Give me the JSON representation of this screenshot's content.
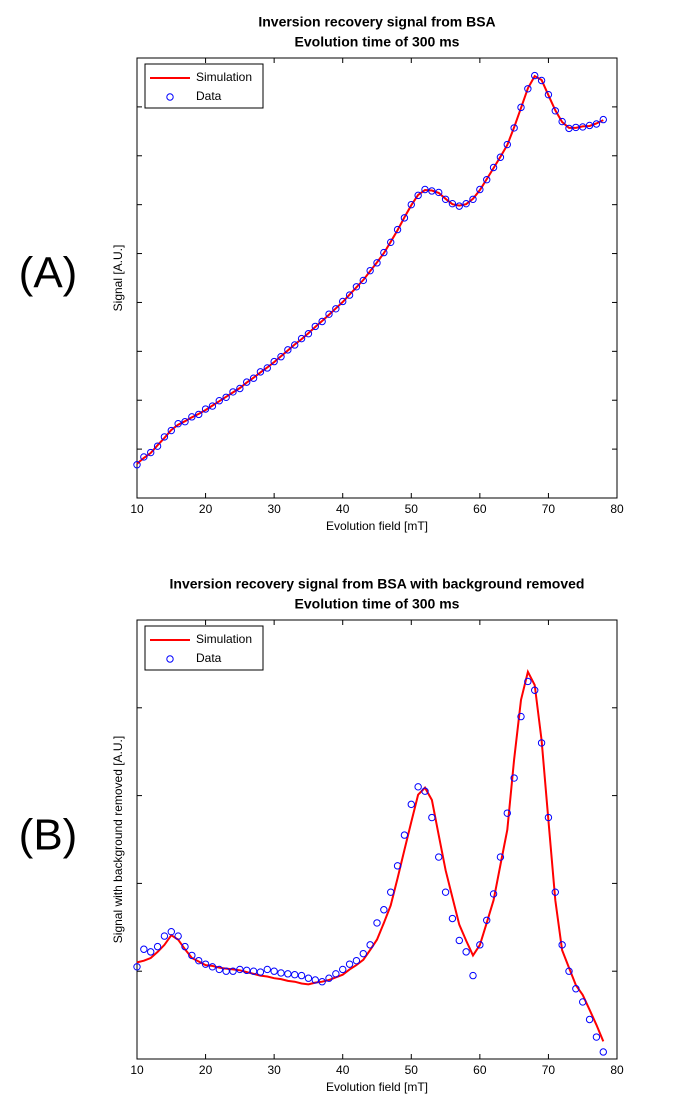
{
  "chart_data": [
    {
      "type": "line",
      "panel_label": "(A)",
      "title": "Inversion recovery signal from BSA",
      "subtitle": "Evolution time of 300 ms",
      "xlabel": "Evolution field [mT]",
      "ylabel": "Signal [A.U.]",
      "xlim": [
        10,
        80
      ],
      "xticks": [
        10,
        20,
        30,
        40,
        50,
        60,
        70,
        80
      ],
      "ylim": [
        0,
        9
      ],
      "yticks": [
        1,
        2,
        3,
        4,
        5,
        6,
        7,
        8
      ],
      "ytick_labels": false,
      "legend": "upper left",
      "x": [
        10,
        11,
        12,
        13,
        14,
        15,
        16,
        17,
        18,
        19,
        20,
        21,
        22,
        23,
        24,
        25,
        26,
        27,
        28,
        29,
        30,
        31,
        32,
        33,
        34,
        35,
        36,
        37,
        38,
        39,
        40,
        41,
        42,
        43,
        44,
        45,
        46,
        47,
        48,
        49,
        50,
        51,
        52,
        53,
        54,
        55,
        56,
        57,
        58,
        59,
        60,
        61,
        62,
        63,
        64,
        65,
        66,
        67,
        68,
        69,
        70,
        71,
        72,
        73,
        74,
        75,
        76,
        77,
        78
      ],
      "series": [
        {
          "name": "Simulation",
          "color": "#ff0000",
          "style": "line",
          "values": [
            0.7,
            0.82,
            0.92,
            1.08,
            1.23,
            1.39,
            1.5,
            1.57,
            1.65,
            1.72,
            1.8,
            1.89,
            1.98,
            2.07,
            2.16,
            2.25,
            2.36,
            2.46,
            2.57,
            2.67,
            2.78,
            2.9,
            3.02,
            3.14,
            3.25,
            3.37,
            3.5,
            3.62,
            3.75,
            3.88,
            4.01,
            4.16,
            4.31,
            4.46,
            4.64,
            4.82,
            5.01,
            5.24,
            5.48,
            5.74,
            5.99,
            6.2,
            6.3,
            6.29,
            6.24,
            6.12,
            6.01,
            5.98,
            6.01,
            6.12,
            6.3,
            6.52,
            6.75,
            6.98,
            7.22,
            7.58,
            7.98,
            8.38,
            8.63,
            8.55,
            8.24,
            7.93,
            7.69,
            7.57,
            7.57,
            7.6,
            7.61,
            7.66,
            7.73
          ]
        },
        {
          "name": "Data",
          "color": "#0000ff",
          "style": "marker",
          "values": [
            0.68,
            0.84,
            0.93,
            1.06,
            1.25,
            1.38,
            1.52,
            1.56,
            1.66,
            1.71,
            1.82,
            1.88,
            1.99,
            2.06,
            2.17,
            2.24,
            2.37,
            2.45,
            2.58,
            2.66,
            2.79,
            2.89,
            3.03,
            3.13,
            3.26,
            3.36,
            3.51,
            3.61,
            3.76,
            3.87,
            4.02,
            4.15,
            4.32,
            4.45,
            4.65,
            4.81,
            5.02,
            5.23,
            5.49,
            5.73,
            6.0,
            6.19,
            6.31,
            6.28,
            6.25,
            6.11,
            6.02,
            5.97,
            6.02,
            6.11,
            6.31,
            6.51,
            6.76,
            6.97,
            7.23,
            7.57,
            7.99,
            8.37,
            8.64,
            8.54,
            8.25,
            7.92,
            7.7,
            7.56,
            7.58,
            7.59,
            7.62,
            7.65,
            7.74
          ]
        }
      ]
    },
    {
      "type": "line",
      "panel_label": "(B)",
      "title": "Inversion recovery signal from BSA with background removed",
      "subtitle": "Evolution time of 300 ms",
      "xlabel": "Evolution field [mT]",
      "ylabel": "Signal with background removed [A.U.]",
      "xlim": [
        10,
        80
      ],
      "xticks": [
        10,
        20,
        30,
        40,
        50,
        60,
        70,
        80
      ],
      "ylim": [
        0,
        5
      ],
      "yticks": [
        1,
        2,
        3,
        4
      ],
      "ytick_labels": false,
      "legend": "upper left",
      "x": [
        10,
        11,
        12,
        13,
        14,
        15,
        16,
        17,
        18,
        19,
        20,
        21,
        22,
        23,
        24,
        25,
        26,
        27,
        28,
        29,
        30,
        31,
        32,
        33,
        34,
        35,
        36,
        37,
        38,
        39,
        40,
        41,
        42,
        43,
        44,
        45,
        46,
        47,
        48,
        49,
        50,
        51,
        52,
        53,
        54,
        55,
        56,
        57,
        58,
        59,
        60,
        61,
        62,
        63,
        64,
        65,
        66,
        67,
        68,
        69,
        70,
        71,
        72,
        73,
        74,
        75,
        76,
        77,
        78
      ],
      "series": [
        {
          "name": "Simulation",
          "color": "#ff0000",
          "style": "line",
          "values": [
            1.1,
            1.12,
            1.15,
            1.22,
            1.3,
            1.41,
            1.36,
            1.25,
            1.15,
            1.11,
            1.07,
            1.06,
            1.04,
            1.03,
            1.02,
            1.01,
            0.99,
            0.97,
            0.95,
            0.94,
            0.92,
            0.91,
            0.89,
            0.88,
            0.86,
            0.85,
            0.87,
            0.88,
            0.9,
            0.93,
            0.96,
            1.02,
            1.07,
            1.13,
            1.24,
            1.36,
            1.55,
            1.75,
            2.06,
            2.38,
            2.7,
            3.01,
            3.09,
            2.95,
            2.55,
            2.15,
            1.84,
            1.53,
            1.35,
            1.18,
            1.3,
            1.55,
            1.81,
            2.21,
            2.61,
            3.41,
            4.09,
            4.41,
            4.26,
            3.63,
            2.72,
            1.81,
            1.24,
            1.04,
            0.84,
            0.73,
            0.56,
            0.39,
            0.2
          ]
        },
        {
          "name": "Data",
          "color": "#0000ff",
          "style": "marker",
          "values": [
            1.05,
            1.25,
            1.22,
            1.28,
            1.4,
            1.45,
            1.4,
            1.28,
            1.18,
            1.12,
            1.08,
            1.05,
            1.02,
            1.0,
            1.0,
            1.02,
            1.01,
            1.0,
            0.99,
            1.02,
            1.0,
            0.98,
            0.97,
            0.96,
            0.95,
            0.92,
            0.9,
            0.88,
            0.92,
            0.97,
            1.02,
            1.08,
            1.12,
            1.2,
            1.3,
            1.55,
            1.7,
            1.9,
            2.2,
            2.55,
            2.9,
            3.1,
            3.05,
            2.75,
            2.3,
            1.9,
            1.6,
            1.35,
            1.22,
            0.95,
            1.3,
            1.58,
            1.88,
            2.3,
            2.8,
            3.2,
            3.9,
            4.3,
            4.2,
            3.6,
            2.75,
            1.9,
            1.3,
            1.0,
            0.8,
            0.65,
            0.45,
            0.25,
            0.08
          ]
        }
      ]
    }
  ]
}
